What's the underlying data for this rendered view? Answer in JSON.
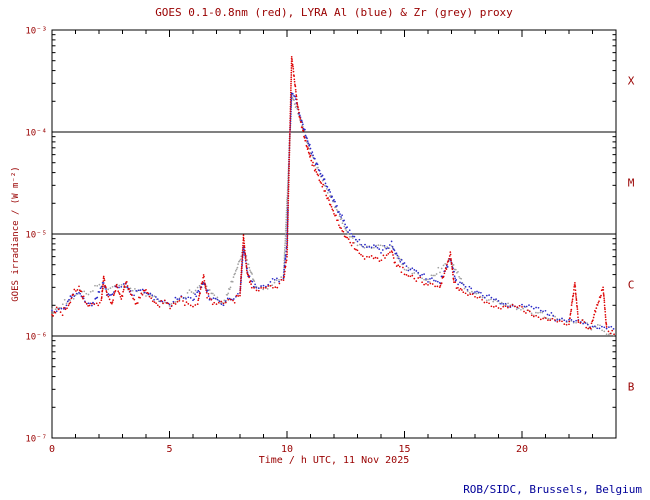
{
  "footer": "ROB/SIDC, Brussels, Belgium",
  "colors": {
    "title_text": "#990000",
    "axis_text": "#990000",
    "frame": "#000000",
    "footer_text": "#000099",
    "red": "#dd0000",
    "blue": "#2929c8",
    "grey": "#a0a0a0"
  },
  "chart_data": {
    "type": "line",
    "title": "GOES 0.1-0.8nm (red), LYRA Al (blue) & Zr (grey) proxy",
    "xlabel": "Time / h UTC, 11 Nov 2025",
    "ylabel": "GOES irradiance / (W m⁻²)",
    "xlim": [
      0,
      24
    ],
    "ylim_log10": [
      -7,
      -3
    ],
    "x_major_ticks": [
      0,
      5,
      10,
      15,
      20
    ],
    "x_minor_step": 1,
    "y_tick_log10": [
      -3,
      -4,
      -5,
      -6,
      -7
    ],
    "y_tick_labels": [
      "10⁻³",
      "10⁻⁴",
      "10⁻⁵",
      "10⁻⁶",
      "10⁻⁷"
    ],
    "hlines_log10": [
      -4,
      -5,
      -6
    ],
    "grid": false,
    "legend": "in title",
    "class_labels": [
      {
        "label": "X",
        "log10_mid": -3.5
      },
      {
        "label": "M",
        "log10_mid": -4.5
      },
      {
        "label": "C",
        "log10_mid": -5.5
      },
      {
        "label": "B",
        "log10_mid": -6.5
      }
    ],
    "series": [
      {
        "name": "GOES 0.1-0.8nm proxy",
        "color_key": "red",
        "points": [
          [
            0.0,
            1.6e-06
          ],
          [
            0.2,
            1.9e-06
          ],
          [
            0.45,
            1.7e-06
          ],
          [
            0.7,
            2e-06
          ],
          [
            0.95,
            2.7e-06
          ],
          [
            1.15,
            3e-06
          ],
          [
            1.35,
            2.3e-06
          ],
          [
            1.6,
            1.9e-06
          ],
          [
            1.9,
            2e-06
          ],
          [
            2.1,
            2.2e-06
          ],
          [
            2.2,
            3.8e-06
          ],
          [
            2.35,
            2.5e-06
          ],
          [
            2.55,
            2.1e-06
          ],
          [
            2.75,
            3.1e-06
          ],
          [
            2.95,
            2.3e-06
          ],
          [
            3.15,
            3.4e-06
          ],
          [
            3.35,
            2.6e-06
          ],
          [
            3.6,
            2.1e-06
          ],
          [
            3.95,
            2.9e-06
          ],
          [
            4.15,
            2.4e-06
          ],
          [
            4.5,
            2e-06
          ],
          [
            4.8,
            2.2e-06
          ],
          [
            5.1,
            1.9e-06
          ],
          [
            5.5,
            2.3e-06
          ],
          [
            5.8,
            2e-06
          ],
          [
            6.2,
            2.1e-06
          ],
          [
            6.45,
            3.9e-06
          ],
          [
            6.6,
            2.5e-06
          ],
          [
            6.9,
            2.1e-06
          ],
          [
            7.3,
            2e-06
          ],
          [
            7.7,
            2.2e-06
          ],
          [
            8.0,
            2.5e-06
          ],
          [
            8.15,
            9.5e-06
          ],
          [
            8.3,
            4.2e-06
          ],
          [
            8.5,
            3e-06
          ],
          [
            8.8,
            2.8e-06
          ],
          [
            9.1,
            3e-06
          ],
          [
            9.5,
            3.1e-06
          ],
          [
            9.85,
            3.5e-06
          ],
          [
            10.0,
            6e-06
          ],
          [
            10.1,
            6e-05
          ],
          [
            10.2,
            0.00055
          ],
          [
            10.3,
            0.00035
          ],
          [
            10.45,
            0.00018
          ],
          [
            10.6,
            0.00012
          ],
          [
            10.8,
            8e-05
          ],
          [
            11.0,
            5.5e-05
          ],
          [
            11.25,
            4e-05
          ],
          [
            11.5,
            3e-05
          ],
          [
            11.75,
            2.2e-05
          ],
          [
            12.0,
            1.6e-05
          ],
          [
            12.25,
            1.2e-05
          ],
          [
            12.5,
            9.5e-06
          ],
          [
            12.75,
            8e-06
          ],
          [
            13.0,
            6.8e-06
          ],
          [
            13.3,
            5.8e-06
          ],
          [
            13.6,
            6.3e-06
          ],
          [
            13.85,
            5.6e-06
          ],
          [
            14.1,
            5.8e-06
          ],
          [
            14.45,
            6.8e-06
          ],
          [
            14.6,
            5.2e-06
          ],
          [
            15.0,
            4.2e-06
          ],
          [
            15.5,
            3.6e-06
          ],
          [
            16.0,
            3.2e-06
          ],
          [
            16.5,
            2.9e-06
          ],
          [
            16.95,
            6.5e-06
          ],
          [
            17.1,
            3.4e-06
          ],
          [
            17.5,
            2.6e-06
          ],
          [
            18.0,
            2.4e-06
          ],
          [
            18.5,
            2.2e-06
          ],
          [
            19.0,
            2e-06
          ],
          [
            19.5,
            1.9e-06
          ],
          [
            20.0,
            1.8e-06
          ],
          [
            20.5,
            1.6e-06
          ],
          [
            21.0,
            1.5e-06
          ],
          [
            21.5,
            1.4e-06
          ],
          [
            22.0,
            1.3e-06
          ],
          [
            22.25,
            3.3e-06
          ],
          [
            22.4,
            1.4e-06
          ],
          [
            22.9,
            1.2e-06
          ],
          [
            23.45,
            3e-06
          ],
          [
            23.6,
            1.2e-06
          ],
          [
            24.0,
            1e-06
          ]
        ]
      },
      {
        "name": "LYRA Al",
        "color_key": "blue",
        "points": [
          [
            0.0,
            1.8e-06
          ],
          [
            0.5,
            1.9e-06
          ],
          [
            0.95,
            2.6e-06
          ],
          [
            1.15,
            2.8e-06
          ],
          [
            1.4,
            2.2e-06
          ],
          [
            1.7,
            2e-06
          ],
          [
            2.2,
            3.3e-06
          ],
          [
            2.4,
            2.4e-06
          ],
          [
            2.75,
            3e-06
          ],
          [
            3.15,
            3.2e-06
          ],
          [
            3.4,
            2.6e-06
          ],
          [
            3.95,
            2.8e-06
          ],
          [
            4.5,
            2.2e-06
          ],
          [
            5.0,
            2.1e-06
          ],
          [
            5.5,
            2.4e-06
          ],
          [
            6.0,
            2.2e-06
          ],
          [
            6.45,
            3.4e-06
          ],
          [
            6.7,
            2.4e-06
          ],
          [
            7.3,
            2.1e-06
          ],
          [
            8.0,
            2.6e-06
          ],
          [
            8.15,
            7.5e-06
          ],
          [
            8.35,
            3.8e-06
          ],
          [
            8.7,
            3e-06
          ],
          [
            9.2,
            3.2e-06
          ],
          [
            9.85,
            3.8e-06
          ],
          [
            10.0,
            8e-06
          ],
          [
            10.1,
            7e-05
          ],
          [
            10.2,
            0.00025
          ],
          [
            10.35,
            0.00022
          ],
          [
            10.5,
            0.00016
          ],
          [
            10.7,
            0.00011
          ],
          [
            11.0,
            6.8e-05
          ],
          [
            11.3,
            4.6e-05
          ],
          [
            11.6,
            3.3e-05
          ],
          [
            12.0,
            2.1e-05
          ],
          [
            12.3,
            1.5e-05
          ],
          [
            12.6,
            1.1e-05
          ],
          [
            13.0,
            8.5e-06
          ],
          [
            13.4,
            7.2e-06
          ],
          [
            13.7,
            7.8e-06
          ],
          [
            14.0,
            6.8e-06
          ],
          [
            14.45,
            8e-06
          ],
          [
            14.7,
            6e-06
          ],
          [
            15.0,
            5e-06
          ],
          [
            15.5,
            4.2e-06
          ],
          [
            16.0,
            3.7e-06
          ],
          [
            16.5,
            3.3e-06
          ],
          [
            16.95,
            5.8e-06
          ],
          [
            17.2,
            3.4e-06
          ],
          [
            17.6,
            3e-06
          ],
          [
            18.0,
            2.7e-06
          ],
          [
            18.5,
            2.4e-06
          ],
          [
            19.0,
            2.2e-06
          ],
          [
            19.5,
            2.1e-06
          ],
          [
            20.0,
            2e-06
          ],
          [
            20.5,
            1.8e-06
          ],
          [
            21.0,
            1.7e-06
          ],
          [
            21.5,
            1.5e-06
          ],
          [
            22.0,
            1.4e-06
          ],
          [
            22.5,
            1.4e-06
          ],
          [
            23.0,
            1.3e-06
          ],
          [
            23.5,
            1.2e-06
          ],
          [
            24.0,
            1.1e-06
          ]
        ]
      },
      {
        "name": "LYRA Zr proxy",
        "color_key": "grey",
        "points": [
          [
            0.0,
            1.7e-06
          ],
          [
            1.0,
            2.5e-06
          ],
          [
            2.2,
            3.1e-06
          ],
          [
            3.15,
            3e-06
          ],
          [
            4.0,
            2.6e-06
          ],
          [
            5.0,
            2e-06
          ],
          [
            6.45,
            3.2e-06
          ],
          [
            7.3,
            2e-06
          ],
          [
            8.15,
            7e-06
          ],
          [
            8.7,
            2.9e-06
          ],
          [
            9.85,
            3.6e-06
          ],
          [
            10.1,
            6.5e-05
          ],
          [
            10.2,
            0.00023
          ],
          [
            10.5,
            0.00015
          ],
          [
            11.0,
            6.4e-05
          ],
          [
            11.6,
            3.1e-05
          ],
          [
            12.0,
            2e-05
          ],
          [
            12.6,
            1e-05
          ],
          [
            13.0,
            8e-06
          ],
          [
            13.7,
            7.4e-06
          ],
          [
            14.45,
            7.6e-06
          ],
          [
            15.0,
            4.7e-06
          ],
          [
            16.0,
            3.5e-06
          ],
          [
            16.95,
            5.5e-06
          ],
          [
            17.6,
            2.9e-06
          ],
          [
            18.5,
            2.3e-06
          ],
          [
            19.5,
            2e-06
          ],
          [
            20.5,
            1.7e-06
          ],
          [
            21.5,
            1.45e-06
          ],
          [
            22.5,
            1.35e-06
          ],
          [
            23.5,
            1.15e-06
          ],
          [
            24.0,
            1.05e-06
          ]
        ]
      }
    ]
  }
}
